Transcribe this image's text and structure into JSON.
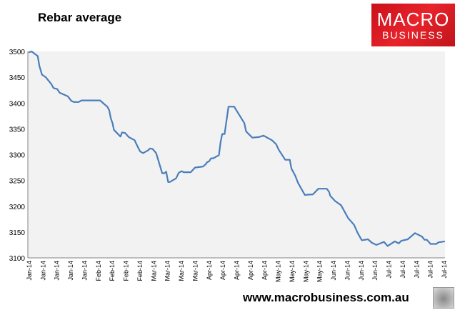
{
  "chart_data": {
    "type": "line",
    "title": "Rebar average",
    "xlabel": "",
    "ylabel": "",
    "ylim": [
      3100,
      3500
    ],
    "xlim": [
      -0.05,
      30.1
    ],
    "yticks": [
      3100,
      3150,
      3200,
      3250,
      3300,
      3350,
      3400,
      3450,
      3500
    ],
    "xtick_labels": [
      "Jan-14",
      "Jan-14",
      "Jan-14",
      "Jan-14",
      "Jan-14",
      "Feb-14",
      "Feb-14",
      "Feb-14",
      "Feb-14",
      "Mar-14",
      "Mar-14",
      "Mar-14",
      "Mar-14",
      "Apr-14",
      "Apr-14",
      "Apr-14",
      "Apr-14",
      "Apr-14",
      "May-14",
      "May-14",
      "May-14",
      "May-14",
      "Jun-14",
      "Jun-14",
      "Jun-14",
      "Jun-14",
      "Jul-14",
      "Jul-14",
      "Jul-14",
      "Jul-14",
      "Jul-14"
    ],
    "grid": false,
    "series": [
      {
        "name": "Rebar average",
        "color": "#4a7ebb",
        "points": [
          [
            0,
            3498
          ],
          [
            0.22,
            3500
          ],
          [
            0.66,
            3491
          ],
          [
            0.78,
            3472
          ],
          [
            0.97,
            3455
          ],
          [
            1.24,
            3450
          ],
          [
            1.64,
            3437
          ],
          [
            1.81,
            3429
          ],
          [
            2.07,
            3427
          ],
          [
            2.24,
            3420
          ],
          [
            2.84,
            3413
          ],
          [
            3.1,
            3404
          ],
          [
            3.28,
            3402
          ],
          [
            3.62,
            3402
          ],
          [
            3.83,
            3405
          ],
          [
            5.17,
            3405
          ],
          [
            5.43,
            3399
          ],
          [
            5.69,
            3393
          ],
          [
            5.83,
            3386
          ],
          [
            5.95,
            3370
          ],
          [
            6.07,
            3361
          ],
          [
            6.17,
            3348
          ],
          [
            6.64,
            3335
          ],
          [
            6.76,
            3343
          ],
          [
            6.98,
            3342
          ],
          [
            7.24,
            3334
          ],
          [
            7.67,
            3328
          ],
          [
            7.84,
            3318
          ],
          [
            8.07,
            3306
          ],
          [
            8.28,
            3303
          ],
          [
            8.62,
            3308
          ],
          [
            8.79,
            3312
          ],
          [
            8.97,
            3311
          ],
          [
            9.22,
            3303
          ],
          [
            9.66,
            3264
          ],
          [
            9.83,
            3264
          ],
          [
            9.95,
            3267
          ],
          [
            10.09,
            3247
          ],
          [
            10.21,
            3247
          ],
          [
            10.66,
            3254
          ],
          [
            10.86,
            3265
          ],
          [
            11.07,
            3268
          ],
          [
            11.21,
            3266
          ],
          [
            11.72,
            3266
          ],
          [
            12.03,
            3275
          ],
          [
            12.62,
            3277
          ],
          [
            12.79,
            3281
          ],
          [
            12.9,
            3285
          ],
          [
            13.05,
            3287
          ],
          [
            13.19,
            3293
          ],
          [
            13.36,
            3293
          ],
          [
            13.76,
            3299
          ],
          [
            13.88,
            3324
          ],
          [
            14.0,
            3340
          ],
          [
            14.17,
            3340
          ],
          [
            14.45,
            3393
          ],
          [
            14.86,
            3393
          ],
          [
            15.6,
            3361
          ],
          [
            15.72,
            3345
          ],
          [
            16.17,
            3333
          ],
          [
            16.64,
            3334
          ],
          [
            16.98,
            3337
          ],
          [
            17.59,
            3328
          ],
          [
            17.9,
            3320
          ],
          [
            18.07,
            3310
          ],
          [
            18.55,
            3290
          ],
          [
            18.88,
            3290
          ],
          [
            19.0,
            3273
          ],
          [
            19.28,
            3259
          ],
          [
            19.48,
            3245
          ],
          [
            19.97,
            3222
          ],
          [
            20.55,
            3223
          ],
          [
            20.95,
            3234
          ],
          [
            21.55,
            3234
          ],
          [
            21.72,
            3228
          ],
          [
            21.81,
            3220
          ],
          [
            22.16,
            3210
          ],
          [
            22.59,
            3202
          ],
          [
            23.1,
            3177
          ],
          [
            23.53,
            3164
          ],
          [
            23.79,
            3148
          ],
          [
            24.09,
            3134
          ],
          [
            24.53,
            3136
          ],
          [
            24.83,
            3129
          ],
          [
            25.14,
            3125
          ],
          [
            25.69,
            3131
          ],
          [
            25.95,
            3123
          ],
          [
            26.47,
            3132
          ],
          [
            26.76,
            3128
          ],
          [
            26.93,
            3133
          ],
          [
            27.41,
            3136
          ],
          [
            27.93,
            3148
          ],
          [
            28.45,
            3141
          ],
          [
            28.62,
            3135
          ],
          [
            28.79,
            3135
          ],
          [
            29.05,
            3127
          ],
          [
            29.48,
            3127
          ],
          [
            29.62,
            3130
          ],
          [
            30.09,
            3132
          ]
        ]
      }
    ]
  },
  "branding": {
    "logo_line1": "MACRO",
    "logo_line2": "BUSINESS",
    "url": "www.macrobusiness.com.au"
  }
}
